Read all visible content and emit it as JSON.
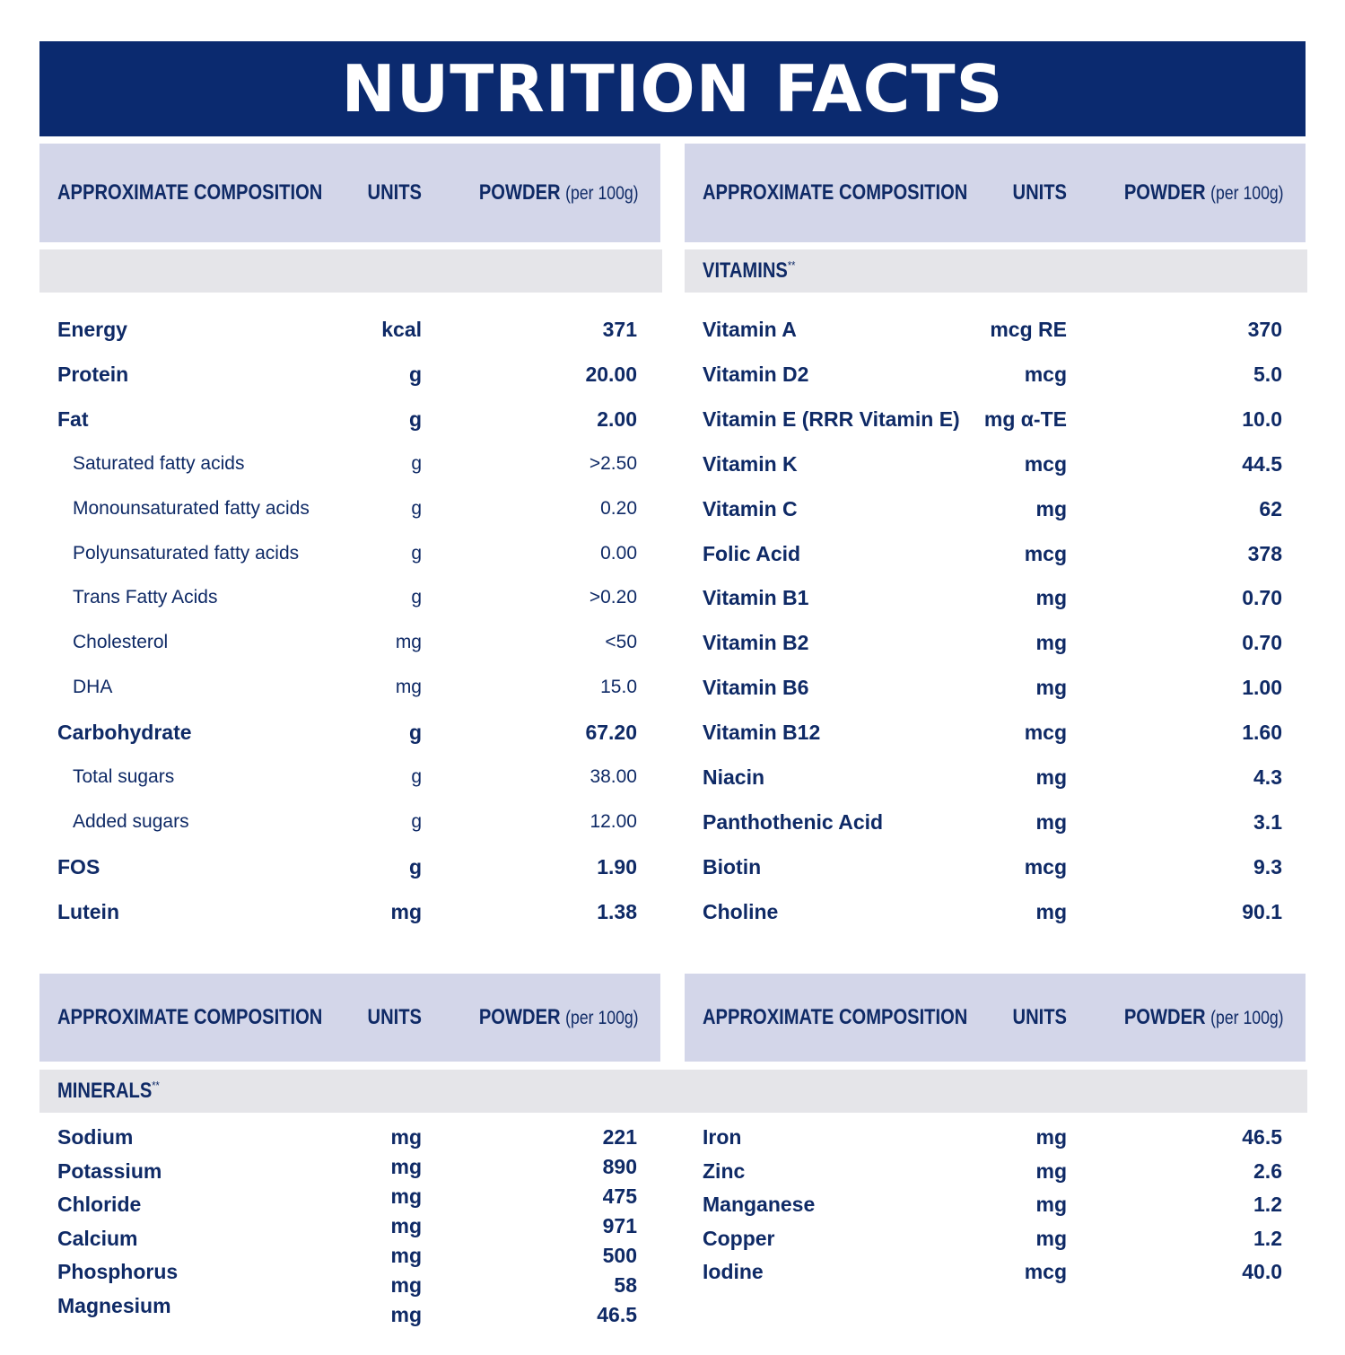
{
  "title": "NUTRITION FACTS",
  "header": {
    "composition": "APPROXIMATE COMPOSITION",
    "units": "UNITS",
    "powder": "POWDER",
    "per": "(per 100g)"
  },
  "vitamins_label": "VITAMINS",
  "minerals_label": "MINERALS",
  "footnote_mark": "**",
  "macros": [
    {
      "name": "Energy",
      "units": "kcal",
      "value": "371",
      "level": "main"
    },
    {
      "name": "Protein",
      "units": "g",
      "value": "20.00",
      "level": "main"
    },
    {
      "name": "Fat",
      "units": "g",
      "value": "2.00",
      "level": "main"
    },
    {
      "name": "Saturated fatty acids",
      "units": "g",
      "value": ">2.50",
      "level": "sub"
    },
    {
      "name": "Monounsaturated fatty acids",
      "units": "g",
      "value": "0.20",
      "level": "sub"
    },
    {
      "name": "Polyunsaturated fatty acids",
      "units": "g",
      "value": "0.00",
      "level": "sub"
    },
    {
      "name": "Trans Fatty Acids",
      "units": "g",
      "value": ">0.20",
      "level": "sub"
    },
    {
      "name": "Cholesterol",
      "units": "mg",
      "value": "<50",
      "level": "sub"
    },
    {
      "name": "DHA",
      "units": "mg",
      "value": "15.0",
      "level": "sub"
    },
    {
      "name": "Carbohydrate",
      "units": "g",
      "value": "67.20",
      "level": "main"
    },
    {
      "name": "Total sugars",
      "units": "g",
      "value": "38.00",
      "level": "sub"
    },
    {
      "name": "Added sugars",
      "units": "g",
      "value": "12.00",
      "level": "sub"
    },
    {
      "name": "FOS",
      "units": "g",
      "value": "1.90",
      "level": "main"
    },
    {
      "name": "Lutein",
      "units": "mg",
      "value": "1.38",
      "level": "main"
    }
  ],
  "vitamins": [
    {
      "name": "Vitamin A",
      "units": "mcg RE",
      "value": "370"
    },
    {
      "name": "Vitamin D2",
      "units": "mcg",
      "value": "5.0"
    },
    {
      "name": "Vitamin E (RRR Vitamin E)",
      "units": "mg α-TE",
      "value": "10.0"
    },
    {
      "name": "Vitamin K",
      "units": "mcg",
      "value": "44.5"
    },
    {
      "name": "Vitamin C",
      "units": "mg",
      "value": "62"
    },
    {
      "name": "Folic Acid",
      "units": "mcg",
      "value": "378"
    },
    {
      "name": "Vitamin B1",
      "units": "mg",
      "value": "0.70"
    },
    {
      "name": "Vitamin B2",
      "units": "mg",
      "value": "0.70"
    },
    {
      "name": "Vitamin B6",
      "units": "mg",
      "value": "1.00"
    },
    {
      "name": "Vitamin B12",
      "units": "mcg",
      "value": "1.60"
    },
    {
      "name": "Niacin",
      "units": "mg",
      "value": "4.3"
    },
    {
      "name": "Panthothenic Acid",
      "units": "mg",
      "value": "3.1"
    },
    {
      "name": "Biotin",
      "units": "mcg",
      "value": "9.3"
    },
    {
      "name": "Choline",
      "units": "mg",
      "value": "90.1"
    }
  ],
  "minerals_left": [
    {
      "name": "Sodium",
      "units": "mg",
      "value": "221"
    },
    {
      "name": "Potassium",
      "units": "mg",
      "value": "890"
    },
    {
      "name": "Chloride",
      "units": "mg",
      "value": "475"
    },
    {
      "name": "Calcium",
      "units": "mg",
      "value": "971"
    },
    {
      "name": "Phosphorus",
      "units": "mg",
      "value": "500"
    },
    {
      "name": "Magnesium",
      "units": "mg",
      "value": "58"
    },
    {
      "name": "",
      "units": "mg",
      "value": "46.5"
    }
  ],
  "minerals_right": [
    {
      "name": "Iron",
      "units": "mg",
      "value": "46.5"
    },
    {
      "name": "Zinc",
      "units": "mg",
      "value": "2.6"
    },
    {
      "name": "Manganese",
      "units": "mg",
      "value": "1.2"
    },
    {
      "name": "Copper",
      "units": "mg",
      "value": "1.2"
    },
    {
      "name": "Iodine",
      "units": "mcg",
      "value": "40.0"
    }
  ]
}
